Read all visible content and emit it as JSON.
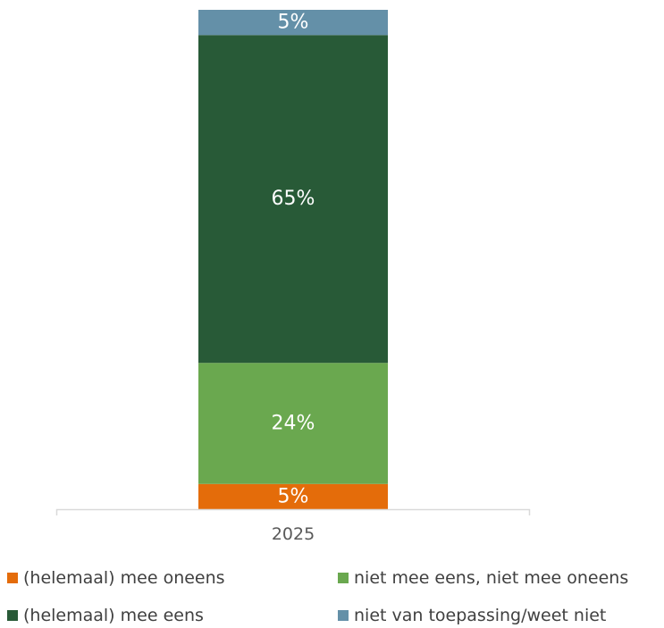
{
  "chart_data": {
    "type": "bar",
    "stacked": true,
    "categories": [
      "2025"
    ],
    "ylim": [
      0,
      100
    ],
    "series": [
      {
        "name": "(helemaal) mee oneens",
        "values": [
          5
        ],
        "label": "5%",
        "color": "#E46C0A"
      },
      {
        "name": "niet mee eens, niet mee oneens",
        "values": [
          24
        ],
        "label": "24%",
        "color": "#6AA84F"
      },
      {
        "name": "(helemaal) mee eens",
        "values": [
          65
        ],
        "label": "65%",
        "color": "#285A37"
      },
      {
        "name": "niet van toepassing/weet niet",
        "values": [
          5
        ],
        "label": "5%",
        "color": "#6490A8"
      }
    ],
    "legend_position": "bottom",
    "grid": false
  }
}
